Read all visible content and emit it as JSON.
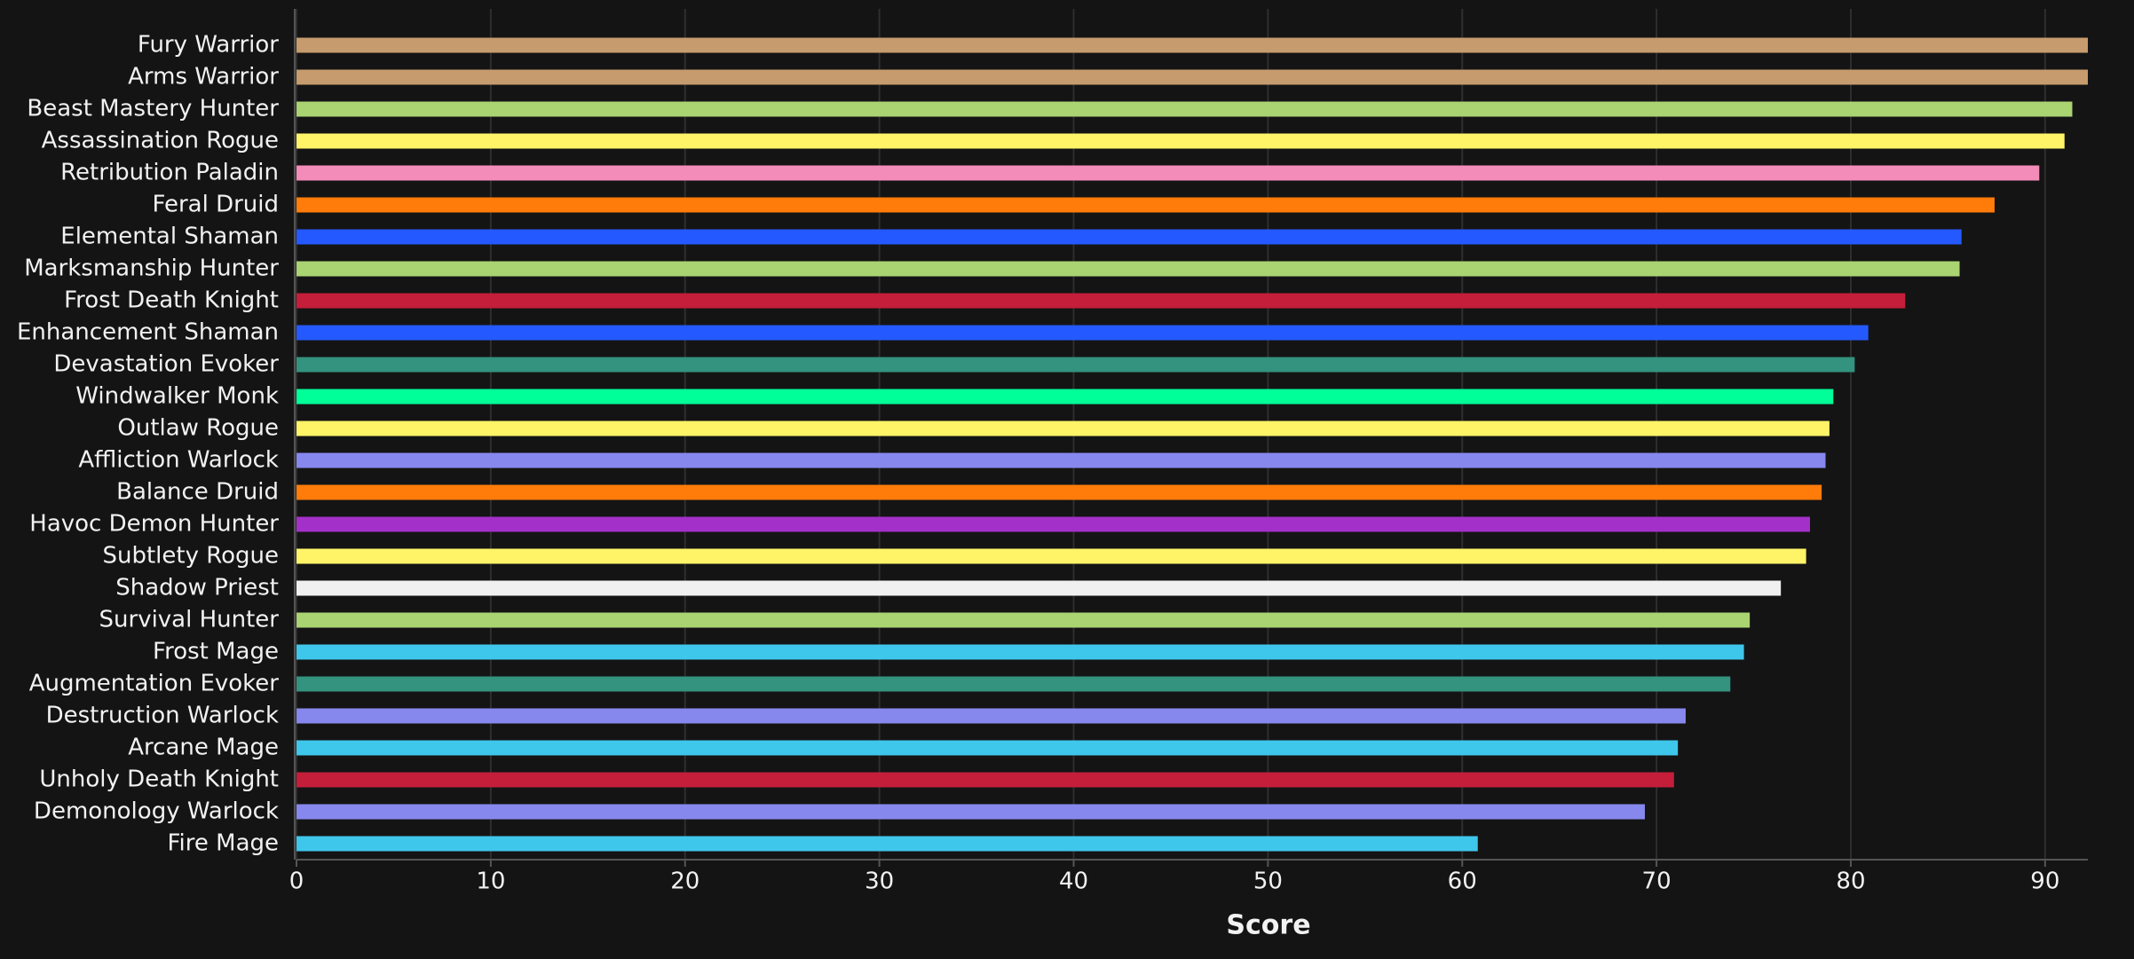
{
  "chart_data": {
    "type": "hbar",
    "x_label": "Score",
    "categories": [
      "Fury Warrior",
      "Arms Warrior",
      "Beast Mastery Hunter",
      "Assassination Rogue",
      "Retribution Paladin",
      "Feral Druid",
      "Elemental Shaman",
      "Marksmanship Hunter",
      "Frost Death Knight",
      "Enhancement Shaman",
      "Devastation Evoker",
      "Windwalker Monk",
      "Outlaw Rogue",
      "Affliction Warlock",
      "Balance Druid",
      "Havoc Demon Hunter",
      "Subtlety Rogue",
      "Shadow Priest",
      "Survival Hunter",
      "Frost Mage",
      "Augmentation Evoker",
      "Destruction Warlock",
      "Arcane Mage",
      "Unholy Death Knight",
      "Demonology Warlock",
      "Fire Mage"
    ],
    "values": [
      92.2,
      92.2,
      91.4,
      91.0,
      89.7,
      87.4,
      85.7,
      85.6,
      82.8,
      80.9,
      80.2,
      79.1,
      78.9,
      78.7,
      78.5,
      77.9,
      77.7,
      76.4,
      74.8,
      74.5,
      73.8,
      71.5,
      71.1,
      70.9,
      69.4,
      60.8
    ],
    "colors": [
      "#C69B6D",
      "#C69B6D",
      "#AAD372",
      "#FFF468",
      "#F48CBA",
      "#FF7C0A",
      "#2459FF",
      "#AAD372",
      "#C41E3A",
      "#2459FF",
      "#33937F",
      "#00FF98",
      "#FFF468",
      "#8788EE",
      "#FF7C0A",
      "#A330C9",
      "#FFF468",
      "#F0F0F0",
      "#AAD372",
      "#3FC7EB",
      "#33937F",
      "#8788EE",
      "#3FC7EB",
      "#C41E3A",
      "#8788EE",
      "#3FC7EB"
    ],
    "xlim": [
      0,
      92.2
    ],
    "xticks": [
      0,
      10,
      20,
      30,
      40,
      50,
      60,
      70,
      80,
      90
    ],
    "grid": true
  }
}
